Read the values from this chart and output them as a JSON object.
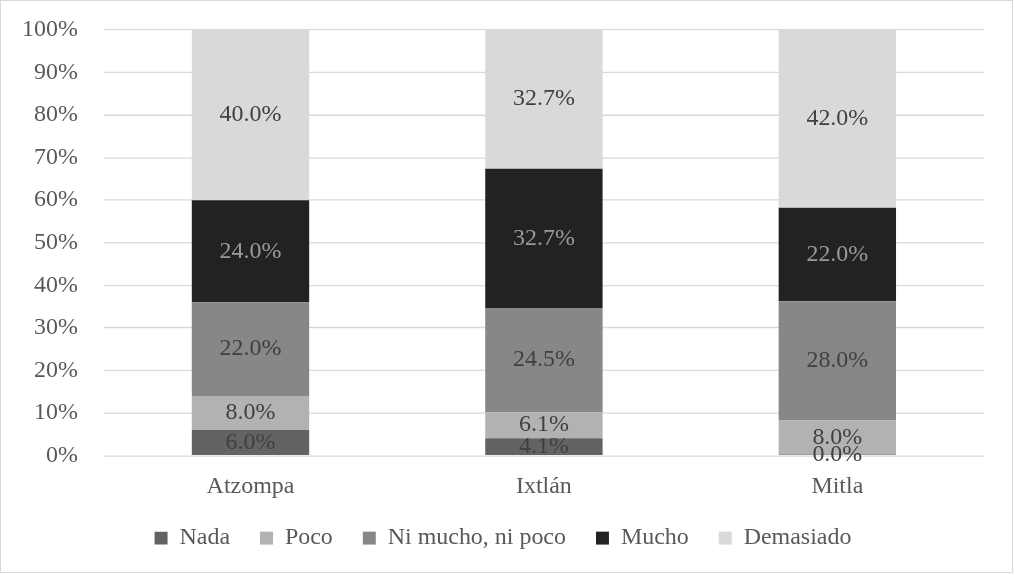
{
  "chart_data": {
    "type": "bar",
    "stacked": true,
    "categories": [
      "Atzompa",
      "Ixtlán",
      "Mitla"
    ],
    "series": [
      {
        "name": "Nada",
        "color": "#636363",
        "values": [
          6.0,
          4.1,
          0.0
        ],
        "value_labels": [
          "6.0%",
          "4.1%",
          "0.0%"
        ]
      },
      {
        "name": "Poco",
        "color": "#b2b2b2",
        "values": [
          8.0,
          6.1,
          8.0
        ],
        "value_labels": [
          "8.0%",
          "6.1%",
          "8.0%"
        ]
      },
      {
        "name": "Ni mucho, ni poco",
        "color": "#878787",
        "values": [
          22.0,
          24.5,
          28.0
        ],
        "value_labels": [
          "22.0%",
          "24.5%",
          "28.0%"
        ]
      },
      {
        "name": "Mucho",
        "color": "#222222",
        "values": [
          24.0,
          32.7,
          22.0
        ],
        "value_labels": [
          "24.0%",
          "32.7%",
          "22.0%"
        ]
      },
      {
        "name": "Demasiado",
        "color": "#d9d9d9",
        "values": [
          40.0,
          32.7,
          42.0
        ],
        "value_labels": [
          "40.0%",
          "32.7%",
          "42.0%"
        ]
      }
    ],
    "ylim": [
      0,
      100
    ],
    "yticks": [
      {
        "value": 0,
        "label": "0%"
      },
      {
        "value": 10,
        "label": "10%"
      },
      {
        "value": 20,
        "label": "20%"
      },
      {
        "value": 30,
        "label": "30%"
      },
      {
        "value": 40,
        "label": "40%"
      },
      {
        "value": 50,
        "label": "50%"
      },
      {
        "value": 60,
        "label": "60%"
      },
      {
        "value": 70,
        "label": "70%"
      },
      {
        "value": 80,
        "label": "80%"
      },
      {
        "value": 90,
        "label": "90%"
      },
      {
        "value": 100,
        "label": "100%"
      }
    ],
    "grid": "y",
    "legend": "bottom"
  }
}
